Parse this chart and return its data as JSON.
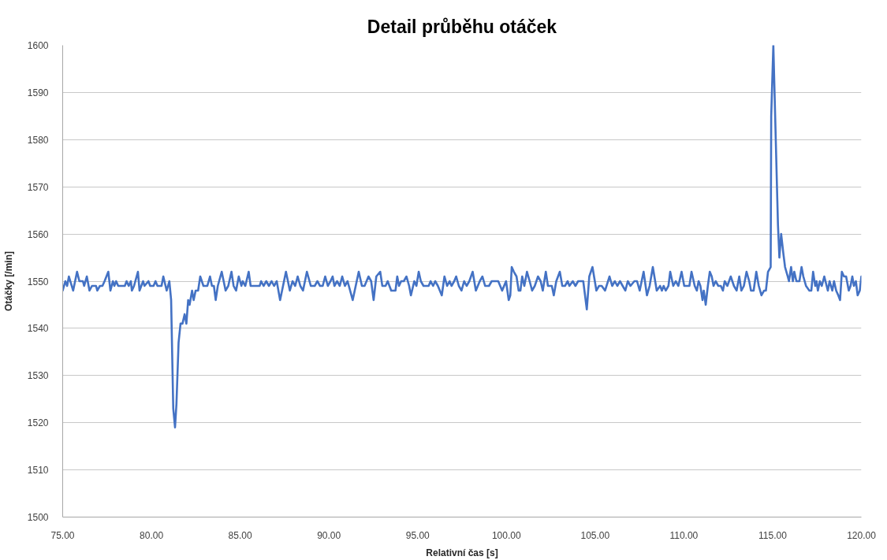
{
  "chart_data": {
    "type": "line",
    "title": "Detail průběhu otáček",
    "xlabel": "Relativní čas [s]",
    "ylabel": "Otáčky [/min]",
    "x": [
      75.0,
      75.15,
      75.25,
      75.35,
      75.59,
      75.81,
      75.94,
      76.14,
      76.21,
      76.36,
      76.51,
      76.65,
      76.88,
      76.95,
      77.1,
      77.24,
      77.36,
      77.57,
      77.69,
      77.83,
      77.91,
      78.01,
      78.13,
      78.5,
      78.6,
      78.72,
      78.84,
      78.9,
      79.02,
      79.24,
      79.33,
      79.53,
      79.61,
      79.83,
      79.93,
      80.12,
      80.23,
      80.34,
      80.57,
      80.67,
      80.86,
      81.01,
      81.11,
      81.23,
      81.33,
      81.41,
      81.53,
      81.64,
      81.75,
      81.87,
      81.97,
      82.07,
      82.15,
      82.29,
      82.38,
      82.49,
      82.63,
      82.75,
      82.93,
      83.15,
      83.3,
      83.41,
      83.52,
      83.62,
      83.74,
      83.96,
      84.18,
      84.33,
      84.51,
      84.63,
      84.77,
      84.92,
      85.07,
      85.14,
      85.29,
      85.48,
      85.59,
      86.1,
      86.18,
      86.32,
      86.47,
      86.62,
      86.77,
      86.91,
      87.06,
      87.25,
      87.58,
      87.8,
      87.95,
      88.1,
      88.24,
      88.39,
      88.54,
      88.76,
      88.98,
      89.2,
      89.35,
      89.5,
      89.65,
      89.79,
      89.94,
      90.09,
      90.21,
      90.31,
      90.46,
      90.61,
      90.75,
      90.9,
      91.05,
      91.34,
      91.68,
      91.86,
      92.01,
      92.23,
      92.38,
      92.52,
      92.67,
      92.89,
      93.01,
      93.19,
      93.31,
      93.41,
      93.51,
      93.75,
      93.85,
      93.95,
      94.07,
      94.22,
      94.37,
      94.52,
      94.62,
      94.81,
      94.93,
      95.06,
      95.18,
      95.33,
      95.62,
      95.73,
      95.87,
      95.99,
      96.14,
      96.36,
      96.51,
      96.66,
      96.8,
      96.91,
      97.06,
      97.17,
      97.32,
      97.47,
      97.62,
      97.76,
      97.91,
      98.1,
      98.28,
      98.5,
      98.65,
      98.8,
      99.02,
      99.17,
      99.31,
      99.54,
      99.76,
      99.98,
      100.13,
      100.22,
      100.3,
      100.42,
      100.57,
      100.69,
      100.79,
      100.89,
      101.01,
      101.16,
      101.31,
      101.45,
      101.6,
      101.78,
      101.93,
      102.05,
      102.22,
      102.34,
      102.56,
      102.67,
      102.81,
      103.01,
      103.15,
      103.3,
      103.45,
      103.55,
      103.74,
      103.89,
      104.04,
      104.19,
      104.33,
      104.53,
      104.67,
      104.85,
      105.07,
      105.22,
      105.37,
      105.56,
      105.81,
      105.96,
      106.11,
      106.25,
      106.4,
      106.55,
      106.7,
      106.84,
      106.99,
      107.21,
      107.36,
      107.51,
      107.73,
      107.92,
      108.07,
      108.25,
      108.47,
      108.66,
      108.76,
      108.86,
      108.98,
      109.13,
      109.23,
      109.4,
      109.54,
      109.69,
      109.87,
      110.02,
      110.31,
      110.43,
      110.61,
      110.73,
      110.83,
      110.93,
      111.05,
      111.12,
      111.23,
      111.35,
      111.46,
      111.57,
      111.67,
      111.79,
      111.94,
      112.08,
      112.2,
      112.3,
      112.45,
      112.64,
      112.82,
      112.97,
      113.12,
      113.24,
      113.38,
      113.53,
      113.68,
      113.78,
      113.93,
      114.08,
      114.22,
      114.37,
      114.52,
      114.62,
      114.74,
      114.89,
      114.92,
      115.04,
      115.3,
      115.38,
      115.48,
      115.6,
      115.7,
      115.85,
      115.92,
      116.04,
      116.14,
      116.22,
      116.34,
      116.51,
      116.63,
      116.73,
      116.88,
      117.07,
      117.18,
      117.28,
      117.4,
      117.47,
      117.55,
      117.66,
      117.77,
      117.91,
      118.11,
      118.21,
      118.36,
      118.46,
      118.58,
      118.7,
      118.8,
      118.9,
      119.02,
      119.14,
      119.29,
      119.39,
      119.49,
      119.58,
      119.69,
      119.79,
      119.91,
      120.0
    ],
    "series": [
      {
        "color": "#4472c4",
        "values": [
          1548,
          1550,
          1549,
          1551,
          1548,
          1552,
          1550,
          1550,
          1549,
          1551,
          1548,
          1549,
          1549,
          1548,
          1549,
          1549,
          1550,
          1552,
          1548,
          1550,
          1549,
          1550,
          1549,
          1549,
          1550,
          1549,
          1550,
          1548,
          1549,
          1552,
          1548,
          1550,
          1549,
          1550,
          1549,
          1549,
          1550,
          1549,
          1549,
          1551,
          1548,
          1550,
          1546,
          1523,
          1519,
          1524,
          1537,
          1541,
          1541,
          1543,
          1541,
          1546,
          1545,
          1548,
          1546,
          1548,
          1548,
          1551,
          1549,
          1549,
          1551,
          1549,
          1549,
          1546,
          1549,
          1552,
          1548,
          1549,
          1552,
          1549,
          1548,
          1551,
          1549,
          1550,
          1549,
          1552,
          1549,
          1549,
          1550,
          1549,
          1550,
          1549,
          1550,
          1549,
          1550,
          1546,
          1552,
          1548,
          1550,
          1549,
          1551,
          1549,
          1548,
          1552,
          1549,
          1549,
          1550,
          1549,
          1549,
          1551,
          1549,
          1550,
          1551,
          1549,
          1550,
          1549,
          1551,
          1549,
          1550,
          1546,
          1552,
          1549,
          1549,
          1551,
          1550,
          1546,
          1551,
          1552,
          1549,
          1549,
          1550,
          1549,
          1548,
          1548,
          1551,
          1549,
          1550,
          1550,
          1551,
          1549,
          1547,
          1550,
          1549,
          1552,
          1550,
          1549,
          1549,
          1550,
          1549,
          1550,
          1549,
          1547,
          1551,
          1549,
          1550,
          1549,
          1550,
          1551,
          1549,
          1548,
          1550,
          1549,
          1550,
          1552,
          1548,
          1550,
          1551,
          1549,
          1549,
          1550,
          1550,
          1550,
          1548,
          1550,
          1546,
          1547,
          1553,
          1552,
          1551,
          1548,
          1548,
          1551,
          1549,
          1552,
          1550,
          1548,
          1549,
          1551,
          1550,
          1548,
          1552,
          1549,
          1549,
          1547,
          1550,
          1552,
          1549,
          1549,
          1550,
          1549,
          1550,
          1549,
          1550,
          1550,
          1550,
          1544,
          1551,
          1553,
          1548,
          1549,
          1549,
          1548,
          1551,
          1549,
          1550,
          1549,
          1550,
          1549,
          1548,
          1550,
          1549,
          1550,
          1550,
          1548,
          1552,
          1547,
          1549,
          1553,
          1548,
          1549,
          1548,
          1549,
          1548,
          1549,
          1552,
          1549,
          1550,
          1549,
          1552,
          1549,
          1549,
          1552,
          1549,
          1548,
          1550,
          1549,
          1546,
          1548,
          1545,
          1549,
          1552,
          1551,
          1549,
          1550,
          1549,
          1549,
          1548,
          1550,
          1549,
          1551,
          1549,
          1548,
          1551,
          1548,
          1549,
          1552,
          1550,
          1548,
          1548,
          1552,
          1549,
          1547,
          1548,
          1548,
          1552,
          1553,
          1585,
          1600,
          1562,
          1555,
          1560,
          1556,
          1553,
          1551,
          1550,
          1553,
          1550,
          1552,
          1550,
          1550,
          1553,
          1551,
          1549,
          1548,
          1548,
          1552,
          1549,
          1550,
          1548,
          1550,
          1549,
          1551,
          1548,
          1550,
          1548,
          1550,
          1548,
          1547,
          1546,
          1552,
          1551,
          1551,
          1548,
          1549,
          1551,
          1549,
          1550,
          1547,
          1548,
          1551
        ]
      }
    ],
    "xlim": [
      75,
      120
    ],
    "ylim": [
      1500,
      1600
    ],
    "xticks": [
      {
        "value": 75,
        "label": "75.00"
      },
      {
        "value": 80,
        "label": "80.00"
      },
      {
        "value": 85,
        "label": "85.00"
      },
      {
        "value": 90,
        "label": "90.00"
      },
      {
        "value": 95,
        "label": "95.00"
      },
      {
        "value": 100,
        "label": "100.00"
      },
      {
        "value": 105,
        "label": "105.00"
      },
      {
        "value": 110,
        "label": "110.00"
      },
      {
        "value": 115,
        "label": "115.00"
      },
      {
        "value": 120,
        "label": "120.00"
      }
    ],
    "yticks": [
      1500,
      1510,
      1520,
      1530,
      1540,
      1550,
      1560,
      1570,
      1580,
      1590,
      1600
    ],
    "grid": "y",
    "line_style": "solid"
  }
}
